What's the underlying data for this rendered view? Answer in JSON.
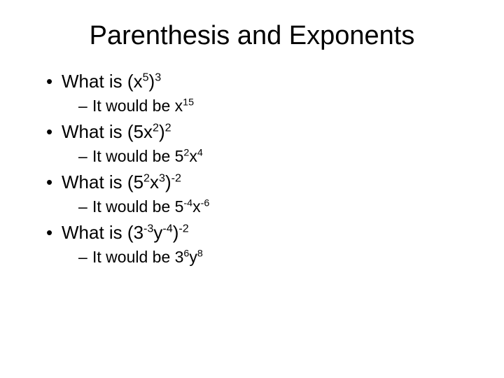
{
  "title": "Parenthesis and Exponents",
  "background_color": "#ffffff",
  "text_color": "#000000",
  "title_fontsize": 38,
  "bullet_fontsize": 26,
  "sub_fontsize": 23,
  "bullet_marker": "•",
  "dash_marker": "–",
  "items": [
    {
      "question_prefix": "What is (x",
      "question_exp1": "5",
      "question_mid": ")",
      "question_exp2": "3",
      "question_suffix": "",
      "answer_prefix": "It would be x",
      "answer_exp1": "15",
      "answer_mid": "",
      "answer_exp2": "",
      "answer_suffix": ""
    },
    {
      "question_prefix": "What is (5x",
      "question_exp1": "2",
      "question_mid": ")",
      "question_exp2": "2",
      "question_suffix": "",
      "answer_prefix": "It would be 5",
      "answer_exp1": "2",
      "answer_mid": "x",
      "answer_exp2": "4",
      "answer_suffix": ""
    },
    {
      "question_prefix": "What is (5",
      "question_exp1": "2",
      "question_mid": "x",
      "question_exp2": "3",
      "question_suffix": ")",
      "question_exp3": "-2",
      "answer_prefix": "It would be 5",
      "answer_exp1": "-4",
      "answer_mid": "x",
      "answer_exp2": "-6",
      "answer_suffix": ""
    },
    {
      "question_prefix": "What is (3",
      "question_exp1": "-3",
      "question_mid": "y",
      "question_exp2": "-4",
      "question_suffix": ")",
      "question_exp3": "-2",
      "answer_prefix": "It would be 3",
      "answer_exp1": "6",
      "answer_mid": "y",
      "answer_exp2": "8",
      "answer_suffix": ""
    }
  ]
}
